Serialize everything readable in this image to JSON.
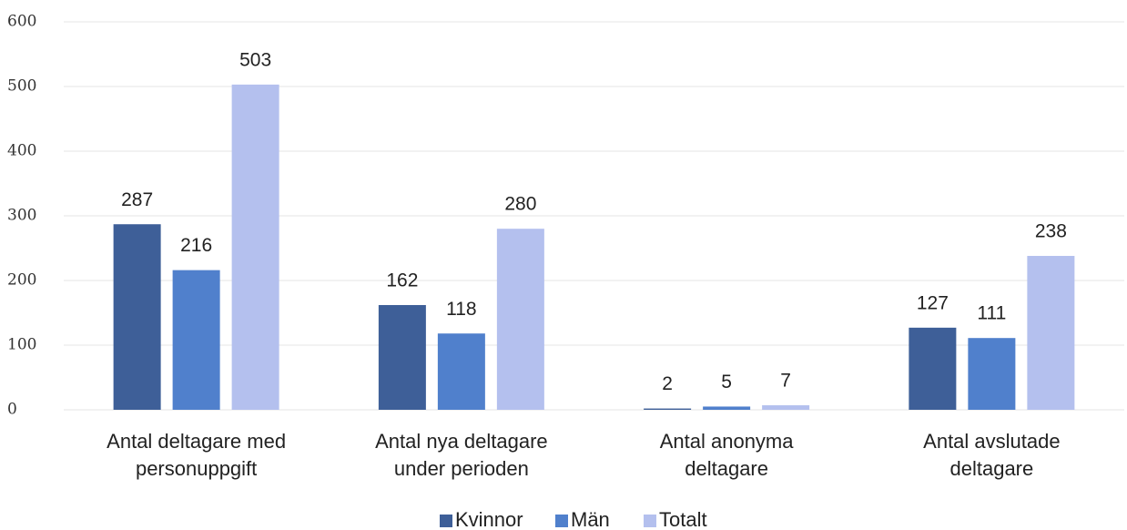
{
  "chart_data": {
    "type": "bar",
    "categories": [
      [
        "Antal deltagare med",
        "personuppgift"
      ],
      [
        "Antal nya deltagare",
        "under perioden"
      ],
      [
        "Antal anonyma",
        "deltagare"
      ],
      [
        "Antal avslutade",
        "deltagare"
      ]
    ],
    "series": [
      {
        "name": "Kvinnor",
        "color": "#3e5f98",
        "values": [
          287,
          162,
          2,
          127
        ]
      },
      {
        "name": "Män",
        "color": "#5080cc",
        "values": [
          216,
          118,
          5,
          111
        ]
      },
      {
        "name": "Totalt",
        "color": "#b4c0ee",
        "values": [
          503,
          280,
          7,
          238
        ]
      }
    ],
    "ylim": [
      0,
      600
    ],
    "yticks": [
      0,
      100,
      200,
      300,
      400,
      500,
      600
    ],
    "grid": true,
    "legend": "bottom"
  }
}
